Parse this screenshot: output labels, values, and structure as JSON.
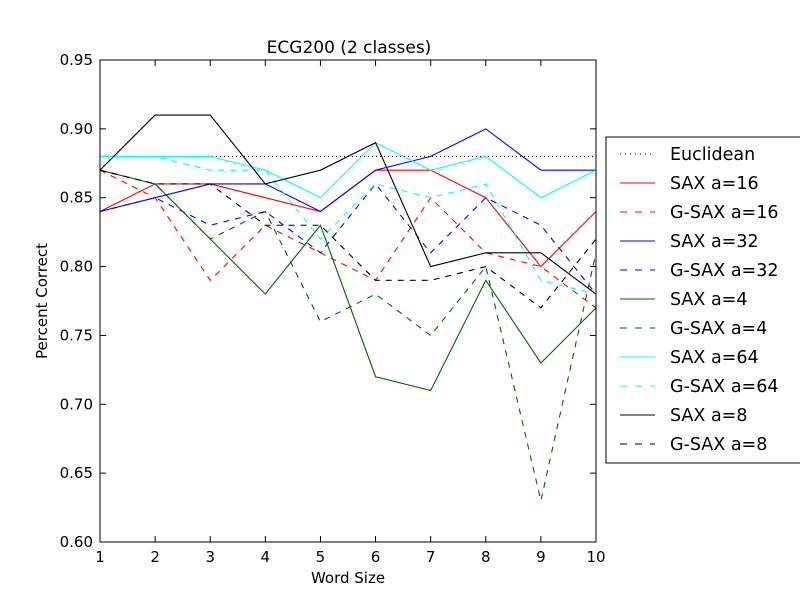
{
  "chart_data": {
    "type": "line",
    "title": "ECG200 (2 classes)",
    "xlabel": "Word Size",
    "ylabel": "Percent Correct",
    "xlim": [
      1,
      10
    ],
    "ylim": [
      0.6,
      0.95
    ],
    "x": [
      1,
      2,
      3,
      4,
      5,
      6,
      7,
      8,
      9,
      10
    ],
    "xticks": [
      "1",
      "2",
      "3",
      "4",
      "5",
      "6",
      "7",
      "8",
      "9",
      "10"
    ],
    "yticks": [
      "0.60",
      "0.65",
      "0.70",
      "0.75",
      "0.80",
      "0.85",
      "0.90",
      "0.95"
    ],
    "grid": false,
    "legend_position": "outside-right",
    "series": [
      {
        "name": "Euclidean",
        "color": "#000000",
        "style": "dotted",
        "values": [
          0.88,
          0.88,
          0.88,
          0.88,
          0.88,
          0.88,
          0.88,
          0.88,
          0.88,
          0.88
        ]
      },
      {
        "name": "SAX a=16",
        "color": "#ff0000",
        "style": "solid",
        "values": [
          0.84,
          0.86,
          0.86,
          0.85,
          0.84,
          0.87,
          0.87,
          0.85,
          0.8,
          0.84
        ]
      },
      {
        "name": "G-SAX a=16",
        "color": "#ff0000",
        "style": "dashed",
        "values": [
          0.87,
          0.85,
          0.79,
          0.83,
          0.81,
          0.79,
          0.85,
          0.81,
          0.8,
          0.77
        ]
      },
      {
        "name": "SAX a=32",
        "color": "#0000ff",
        "style": "solid",
        "values": [
          0.84,
          0.85,
          0.86,
          0.86,
          0.84,
          0.87,
          0.88,
          0.9,
          0.87,
          0.87
        ]
      },
      {
        "name": "G-SAX a=32",
        "color": "#0000ff",
        "style": "dashed",
        "values": [
          0.84,
          0.85,
          0.83,
          0.84,
          0.81,
          0.86,
          0.81,
          0.85,
          0.83,
          0.78
        ]
      },
      {
        "name": "SAX a=4",
        "color": "#006400",
        "style": "solid",
        "values": [
          0.87,
          0.86,
          0.82,
          0.78,
          0.83,
          0.72,
          0.71,
          0.79,
          0.73,
          0.77
        ]
      },
      {
        "name": "G-SAX a=4",
        "color": "#006400",
        "style": "dashed",
        "values": [
          0.87,
          0.86,
          0.82,
          0.84,
          0.76,
          0.78,
          0.75,
          0.8,
          0.63,
          0.81
        ]
      },
      {
        "name": "SAX a=64",
        "color": "#00ffff",
        "style": "solid",
        "values": [
          0.88,
          0.88,
          0.88,
          0.87,
          0.85,
          0.89,
          0.87,
          0.88,
          0.85,
          0.87
        ]
      },
      {
        "name": "G-SAX a=64",
        "color": "#00ffff",
        "style": "dashed",
        "values": [
          0.88,
          0.88,
          0.87,
          0.87,
          0.82,
          0.86,
          0.85,
          0.86,
          0.79,
          0.78
        ]
      },
      {
        "name": "SAX a=8",
        "color": "#000000",
        "style": "solid",
        "values": [
          0.87,
          0.91,
          0.91,
          0.86,
          0.87,
          0.89,
          0.8,
          0.81,
          0.81,
          0.78
        ]
      },
      {
        "name": "G-SAX a=8",
        "color": "#000000",
        "style": "dashed",
        "values": [
          0.87,
          0.86,
          0.86,
          0.83,
          0.83,
          0.79,
          0.79,
          0.8,
          0.77,
          0.82
        ]
      }
    ]
  }
}
